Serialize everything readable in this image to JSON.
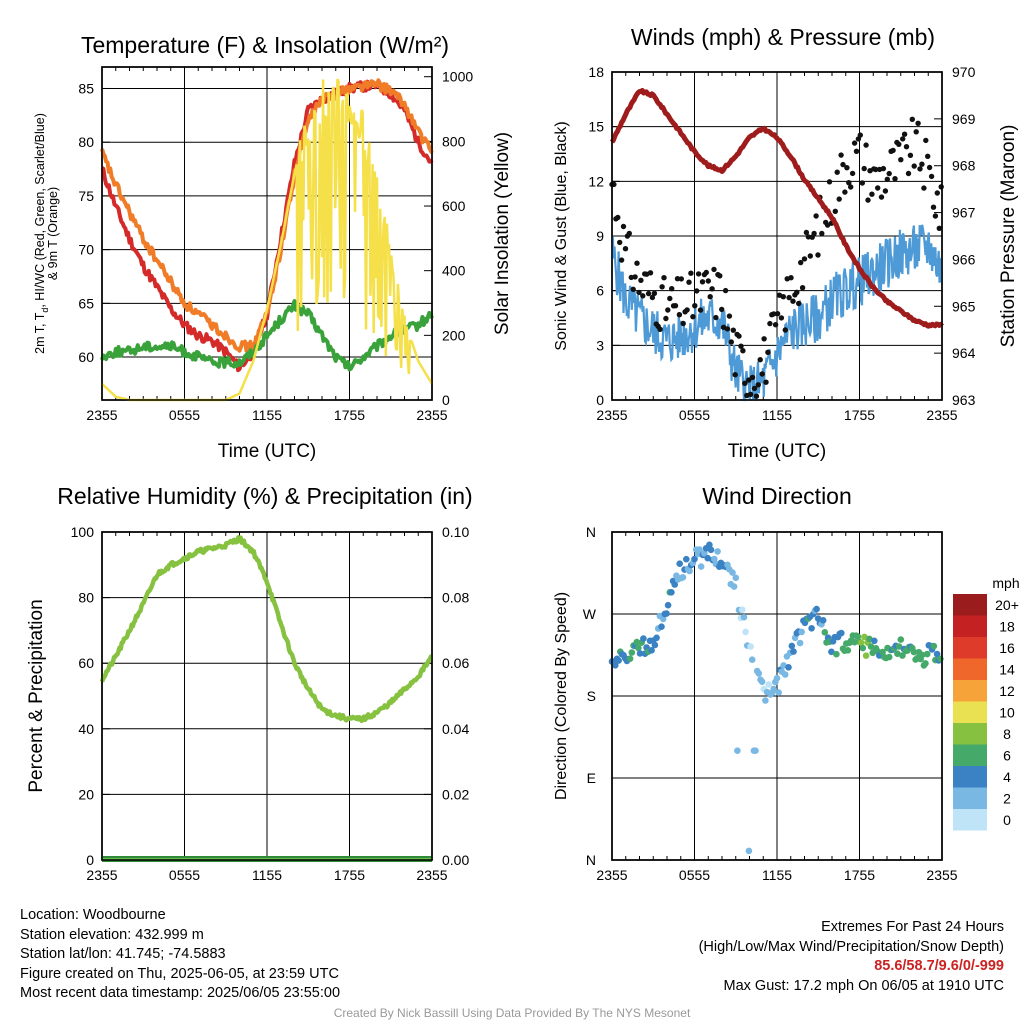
{
  "time_ticks": [
    "2355",
    "0555",
    "1155",
    "1755",
    "2355"
  ],
  "chart_data": [
    {
      "type": "line",
      "title": "Temperature (F) & Insolation (W/m²)",
      "xlabel": "Time (UTC)",
      "ylabel": "2m T, T_d, HI/WC (Red, Green, Scarlet/Blue) & 9m T (Orange)",
      "ylabel_lines": [
        "2m T, T",
        "d",
        ", HI/WC (Red, Green, Scarlet/Blue)",
        "& 9m T (Orange)"
      ],
      "y2label": "Solar Insolation (Yellow)",
      "ylim": [
        56,
        87
      ],
      "y2lim": [
        0,
        1030
      ],
      "yticks": [
        60,
        65,
        70,
        75,
        80,
        85
      ],
      "y2ticks": [
        0,
        200,
        400,
        600,
        800,
        1000
      ],
      "x_hours": [
        0,
        1,
        2,
        3,
        4,
        5,
        6,
        7,
        8,
        9,
        10,
        11,
        12,
        13,
        14,
        15,
        16,
        17,
        18,
        19,
        20,
        21,
        22,
        23,
        24
      ],
      "series": [
        {
          "name": "2m T",
          "axis": "left",
          "color": "#d42a2a",
          "values": [
            77.5,
            74,
            71,
            68.5,
            66.5,
            64.5,
            63,
            62,
            61.5,
            60.5,
            59,
            60.5,
            64,
            71,
            78,
            83,
            84,
            84.5,
            85,
            85.2,
            85.3,
            84.5,
            83,
            80,
            78
          ]
        },
        {
          "name": "9m T",
          "axis": "left",
          "color": "#f07c28",
          "values": [
            79,
            76,
            73.5,
            71,
            69,
            67,
            65,
            64,
            63,
            62,
            61,
            61,
            64,
            70,
            77,
            82,
            84,
            84.5,
            85,
            85.3,
            85.4,
            84.8,
            83.5,
            81,
            79
          ]
        },
        {
          "name": "T_d",
          "axis": "left",
          "color": "#3aa23a",
          "values": [
            60,
            60.5,
            60.5,
            61,
            61,
            61,
            60.5,
            60,
            59.5,
            59.5,
            59.5,
            60.5,
            62,
            63.5,
            64.8,
            64,
            62,
            60,
            59,
            60,
            61,
            62,
            62.5,
            63,
            64
          ]
        },
        {
          "name": "Solar Insolation",
          "axis": "right",
          "color": "#f5e04a",
          "values": [
            50,
            10,
            0,
            0,
            0,
            0,
            0,
            0,
            0,
            0,
            20,
            120,
            280,
            480,
            700,
            880,
            960,
            950,
            930,
            850,
            700,
            450,
            250,
            120,
            50
          ]
        }
      ]
    },
    {
      "type": "scatter+line",
      "title": "Winds (mph) & Pressure (mb)",
      "xlabel": "Time (UTC)",
      "ylabel": "Sonic Wind & Gust (Blue, Black)",
      "y2label": "Station Pressure (Maroon)",
      "ylim": [
        0,
        18
      ],
      "y2lim": [
        963,
        970
      ],
      "yticks": [
        0,
        3,
        6,
        9,
        12,
        15,
        18
      ],
      "y2ticks": [
        963,
        964,
        965,
        966,
        967,
        968,
        969,
        970
      ],
      "x_hours": [
        0,
        1,
        2,
        3,
        4,
        5,
        6,
        7,
        8,
        9,
        10,
        11,
        12,
        13,
        14,
        15,
        16,
        17,
        18,
        19,
        20,
        21,
        22,
        23,
        24
      ],
      "series": [
        {
          "name": "Sonic Wind",
          "axis": "left",
          "color": "#4e9ad6",
          "values": [
            8,
            5.5,
            4.5,
            3.8,
            3.2,
            3.5,
            4,
            4.5,
            4.3,
            1.5,
            0.5,
            1,
            2.5,
            3.8,
            4.2,
            4.5,
            5.5,
            6,
            6.5,
            7,
            7.5,
            8,
            8.2,
            8.5,
            7
          ]
        },
        {
          "name": "Gust",
          "axis": "left",
          "color": "#111111",
          "values": [
            12,
            8,
            6.5,
            5.8,
            5,
            5.2,
            5.5,
            6,
            5.8,
            2.5,
            1.5,
            2,
            4,
            6,
            7.5,
            9.5,
            11,
            13,
            13.5,
            12,
            12.5,
            13,
            14,
            12.5,
            10
          ]
        },
        {
          "name": "Station Pressure",
          "axis": "right",
          "color": "#9e1c1c",
          "values": [
            968.5,
            969.1,
            969.6,
            969.5,
            969.1,
            968.7,
            968.3,
            968,
            967.9,
            968.2,
            968.6,
            968.8,
            968.6,
            968.2,
            967.7,
            967.3,
            966.9,
            966.3,
            965.8,
            965.4,
            965.1,
            964.9,
            964.7,
            964.6,
            964.6
          ]
        }
      ]
    },
    {
      "type": "line",
      "title": "Relative Humidity (%) & Precipitation (in)",
      "ylabel": "Percent & Precipitation",
      "ylim": [
        0,
        100
      ],
      "y2lim": [
        0,
        0.1
      ],
      "yticks": [
        0,
        20,
        40,
        60,
        80,
        100
      ],
      "y2ticks": [
        "0.00",
        "0.02",
        "0.04",
        "0.06",
        "0.08",
        "0.10"
      ],
      "x_hours": [
        0,
        1,
        2,
        3,
        4,
        5,
        6,
        7,
        8,
        9,
        10,
        11,
        12,
        13,
        14,
        15,
        16,
        17,
        18,
        19,
        20,
        21,
        22,
        23,
        24
      ],
      "series": [
        {
          "name": "Relative Humidity",
          "axis": "left",
          "color": "#86c140",
          "values": [
            55,
            62,
            70,
            78,
            87,
            90,
            92,
            94,
            95,
            96,
            98,
            94,
            85,
            72,
            60,
            52,
            46,
            44,
            43,
            43,
            45,
            48,
            52,
            56,
            62
          ]
        },
        {
          "name": "Precipitation",
          "axis": "right",
          "color": "#2f8a3a",
          "values": [
            0,
            0,
            0,
            0,
            0,
            0,
            0,
            0,
            0,
            0,
            0,
            0,
            0,
            0,
            0,
            0,
            0,
            0,
            0,
            0,
            0,
            0,
            0,
            0,
            0
          ]
        }
      ]
    },
    {
      "type": "scatter",
      "title": "Wind Direction",
      "ylabel": "Direction (Colored By Speed)",
      "yticks": [
        "N",
        "E",
        "S",
        "W",
        "N"
      ],
      "ylim": [
        0,
        360
      ],
      "x_hours": [
        0,
        1,
        2,
        3,
        4,
        5,
        6,
        7,
        8,
        9,
        10,
        11,
        12,
        13,
        14,
        15,
        16,
        17,
        18,
        19,
        20,
        21,
        22,
        23,
        24
      ],
      "direction_values": [
        213,
        222,
        230,
        240,
        280,
        318,
        330,
        336,
        332,
        300,
        230,
        185,
        190,
        225,
        260,
        270,
        235,
        240,
        238,
        230,
        225,
        232,
        220,
        225,
        228
      ],
      "speed_values": [
        5,
        5,
        5,
        4,
        4,
        3,
        3,
        3,
        3,
        1,
        1,
        1,
        2,
        3,
        4,
        4,
        5,
        6,
        7,
        6,
        5,
        6,
        6,
        5,
        5
      ],
      "colorbar": {
        "title": "mph",
        "labels": [
          "20+",
          "18",
          "16",
          "14",
          "12",
          "10",
          "8",
          "6",
          "4",
          "2",
          "0"
        ],
        "colors": [
          "#9b1c1c",
          "#c42222",
          "#de3b2b",
          "#f0672c",
          "#f6a33a",
          "#e9e052",
          "#86c140",
          "#45a96a",
          "#3a82c4",
          "#7ab8e4",
          "#bfe4f7"
        ]
      }
    }
  ],
  "info": {
    "location": "Location: Woodbourne",
    "elevation": "Station elevation: 432.999 m",
    "latlon": "Station lat/lon: 41.745; -74.5883",
    "created": "Figure created on Thu, 2025-06-05, at 23:59 UTC",
    "recent": "Most recent data timestamp: 2025/06/05 23:55:00"
  },
  "extremes": {
    "title": "Extremes For Past 24 Hours",
    "subtitle": "(High/Low/Max Wind/Precipitation/Snow Depth)",
    "values": "85.6/58.7/9.6/0/-999",
    "max_gust": "Max Gust: 17.2 mph On 06/05 at 1910 UTC"
  },
  "credit": "Created By Nick Bassill Using Data Provided By The NYS Mesonet"
}
